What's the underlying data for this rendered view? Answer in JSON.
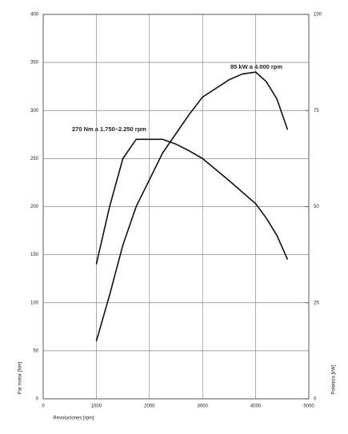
{
  "chart_data": {
    "type": "line",
    "x_label": "Revoluciones [rpm]",
    "y_label": "Par motor [Nm]",
    "y2_label": "Potencia [kW]",
    "annotations": [
      "85 kW a 4.000 rpm",
      "270 Nm a 1.750–2.250 rpm"
    ],
    "xlim": [
      0,
      5000
    ],
    "xticks": [
      0,
      1000,
      2000,
      3000,
      4000,
      5000
    ],
    "ylim": [
      0,
      400
    ],
    "yticks": [
      0,
      50,
      100,
      150,
      200,
      250,
      300,
      350,
      400
    ],
    "y2lim": [
      0,
      100
    ],
    "y2ticks": [
      0,
      25,
      50,
      75,
      100
    ],
    "grid": true,
    "series": [
      {
        "name": "Par motor",
        "color": "#111111",
        "x": [
          1000,
          1250,
          1500,
          1750,
          2250,
          2500,
          2750,
          3000,
          3500,
          4000,
          4200,
          4400,
          4600
        ],
        "values": [
          140,
          200,
          250,
          270,
          270,
          265,
          258,
          250,
          227,
          203,
          188,
          170,
          145
        ]
      },
      {
        "name": "Potencia",
        "color": "#111111",
        "axis": "y2",
        "x": [
          1000,
          1250,
          1500,
          1750,
          2000,
          2250,
          2500,
          2750,
          3000,
          3500,
          3750,
          4000,
          4200,
          4400,
          4600
        ],
        "values": [
          15,
          27,
          40,
          50,
          57,
          64,
          69,
          74,
          78.5,
          83,
          84.5,
          85,
          82.5,
          78,
          70
        ]
      }
    ]
  }
}
